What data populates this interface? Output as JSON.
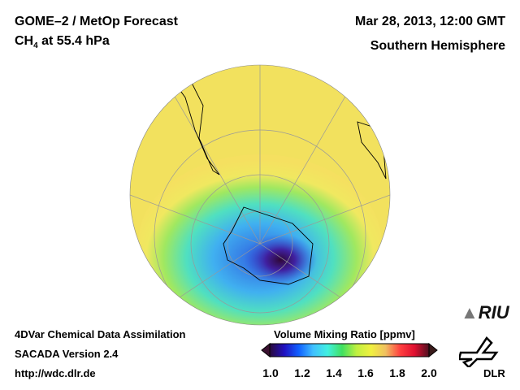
{
  "header": {
    "title_line1": "GOME–2 / MetOp Forecast",
    "species": "CH",
    "species_sub": "4",
    "level": " at 55.4 hPa",
    "datetime": "Mar 28, 2013, 12:00 GMT",
    "region": "Southern Hemisphere"
  },
  "footer": {
    "line1": "4DVar Chemical Data Assimilation",
    "line2": "SACADA Version 2.4",
    "line3": "http://wdc.dlr.de"
  },
  "colorbar": {
    "title": "Volume Mixing Ratio [ppmv]",
    "min": 1.0,
    "max": 2.0,
    "ticks": [
      "1.0",
      "1.2",
      "1.4",
      "1.6",
      "1.8",
      "2.0"
    ],
    "colors": [
      "#2a0a3a",
      "#2010c0",
      "#1060ff",
      "#40c0ff",
      "#40f0e0",
      "#40e060",
      "#c0f040",
      "#f0f040",
      "#f0c060",
      "#ff4040",
      "#e01030",
      "#501020"
    ]
  },
  "logos": {
    "riu": "RIU",
    "dlr": "DLR"
  }
}
